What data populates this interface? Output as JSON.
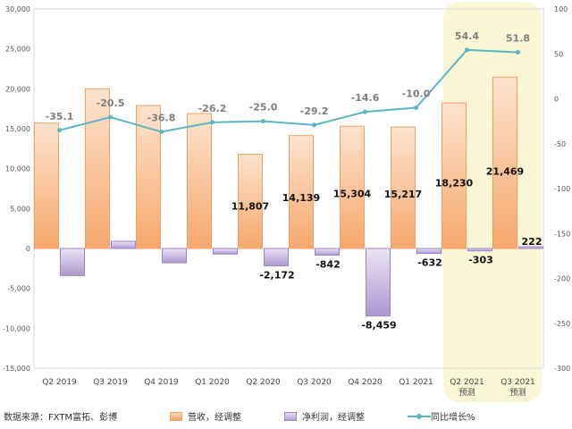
{
  "source_text": "数据来源：FXTM富拓、彭博",
  "colors": {
    "revenue": "#f6a86c",
    "net_profit": "#b7a2d6",
    "growth": "#5ab5c6",
    "forecast_band": "#fbf7d6"
  },
  "chart_data": {
    "type": "bar",
    "categories": [
      [
        "Q2 2019"
      ],
      [
        "Q3 2019"
      ],
      [
        "Q4 2019"
      ],
      [
        "Q1 2020"
      ],
      [
        "Q2 2020"
      ],
      [
        "Q3 2020"
      ],
      [
        "Q4 2020"
      ],
      [
        "Q1 2021"
      ],
      [
        "Q2 2021",
        "预测"
      ],
      [
        "Q3 2021",
        "预测"
      ]
    ],
    "forecast_categories": [
      "Q2 2021",
      "Q3 2021"
    ],
    "y_left": {
      "min": -15000,
      "max": 30000,
      "step": 5000
    },
    "y_right": {
      "min": -300,
      "max": 100,
      "step": 50
    },
    "series": [
      {
        "name": "营收，经调整",
        "type": "bar",
        "axis": "left",
        "values": [
          15700,
          20000,
          17900,
          16900,
          11807,
          14139,
          15304,
          15217,
          18230,
          21469
        ],
        "labels": [
          "",
          "",
          "",
          "",
          "11,807",
          "14,139",
          "15,304",
          "15,217",
          "18,230",
          "21,469"
        ]
      },
      {
        "name": "净利润，经调整",
        "type": "bar",
        "axis": "left",
        "values": [
          -3400,
          900,
          -1800,
          -700,
          -2172,
          -842,
          -8459,
          -632,
          -303,
          222
        ],
        "labels": [
          "",
          "",
          "",
          "",
          "-2,172",
          "-842",
          "-8,459",
          "-632",
          "-303",
          "222"
        ]
      },
      {
        "name": "同比增长%",
        "type": "line",
        "axis": "right",
        "values": [
          -35.1,
          -20.5,
          -36.8,
          -26.2,
          -25.0,
          -29.2,
          -14.6,
          -10.0,
          54.4,
          51.8
        ],
        "labels": [
          "-35.1",
          "-20.5",
          "-36.8",
          "-26.2",
          "-25.0",
          "-29.2",
          "-14.6",
          "-10.0",
          "54.4",
          "51.8"
        ]
      }
    ]
  }
}
